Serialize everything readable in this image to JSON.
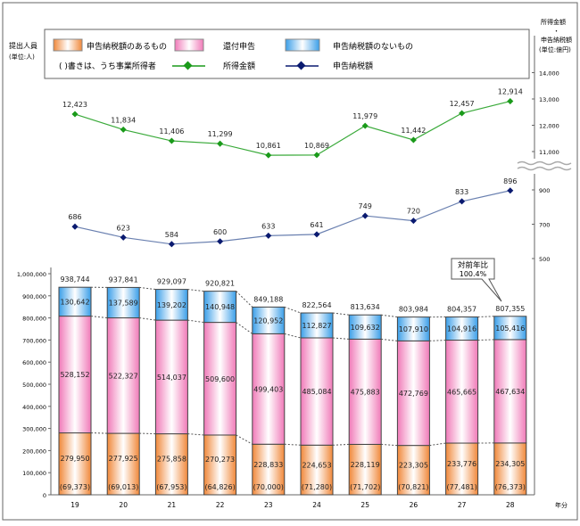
{
  "chart_data": {
    "type": "bar",
    "categories": [
      "19",
      "20",
      "21",
      "22",
      "23",
      "24",
      "25",
      "26",
      "27",
      "28"
    ],
    "xlabel": "年分",
    "left_axis": {
      "label_line1": "提出人員",
      "label_line2": "(単位:人)",
      "ylim": [
        0,
        1000000
      ],
      "ticks": [
        "0",
        "100,000",
        "200,000",
        "300,000",
        "400,000",
        "500,000",
        "600,000",
        "700,000",
        "800,000",
        "900,000",
        "1,000,000"
      ]
    },
    "right_axis": {
      "label_line1": "所得金額",
      "label_line2": "・",
      "label_line3": "申告納税額",
      "label_line4": "(単位:億円)",
      "upper_ticks": [
        "11,000",
        "12,000",
        "13,000",
        "14,000"
      ],
      "lower_ticks": [
        "500",
        "700",
        "900"
      ]
    },
    "series": [
      {
        "name": "申告納税額のあるもの",
        "color": "#f0883a",
        "values": [
          279950,
          277925,
          275858,
          270273,
          228833,
          224653,
          228119,
          223305,
          233776,
          234305
        ],
        "labels": [
          "279,950",
          "277,925",
          "275,858",
          "270,273",
          "228,833",
          "224,653",
          "228,119",
          "223,305",
          "233,776",
          "234,305"
        ],
        "sub_labels": [
          "(69,373)",
          "(69,013)",
          "(67,953)",
          "(64,826)",
          "(70,000)",
          "(71,280)",
          "(71,702)",
          "(70,821)",
          "(77,481)",
          "(76,373)"
        ]
      },
      {
        "name": "還付申告",
        "color": "#f07ab8",
        "values": [
          528152,
          522327,
          514037,
          509600,
          499403,
          485084,
          475883,
          472769,
          465665,
          467634
        ],
        "labels": [
          "528,152",
          "522,327",
          "514,037",
          "509,600",
          "499,403",
          "485,084",
          "475,883",
          "472,769",
          "465,665",
          "467,634"
        ]
      },
      {
        "name": "申告納税額のないもの",
        "color": "#3a9ee8",
        "values": [
          130642,
          137589,
          139202,
          140948,
          120952,
          112827,
          109632,
          107910,
          104916,
          105416
        ],
        "labels": [
          "130,642",
          "137,589",
          "139,202",
          "140,948",
          "120,952",
          "112,827",
          "109,632",
          "107,910",
          "104,916",
          "105,416"
        ]
      }
    ],
    "totals": [
      "938,744",
      "937,841",
      "929,097",
      "920,821",
      "849,188",
      "822,564",
      "813,634",
      "803,984",
      "804,357",
      "807,355"
    ],
    "lines": [
      {
        "name": "所得金額",
        "color": "#1a9a1a",
        "values": [
          12423,
          11834,
          11406,
          11299,
          10861,
          10869,
          11979,
          11442,
          12457,
          12914
        ],
        "labels": [
          "12,423",
          "11,834",
          "11,406",
          "11,299",
          "10,861",
          "10,869",
          "11,979",
          "11,442",
          "12,457",
          "12,914"
        ]
      },
      {
        "name": "申告納税額",
        "color": "#0a1a70",
        "values": [
          686,
          623,
          584,
          600,
          633,
          641,
          749,
          720,
          833,
          896
        ],
        "labels": [
          "686",
          "623",
          "584",
          "600",
          "633",
          "641",
          "749",
          "720",
          "833",
          "896"
        ]
      }
    ],
    "legend_note": "(   )書きは、うち事業所得者",
    "callout": {
      "line1": "対前年比",
      "line2": "100.4%"
    }
  }
}
